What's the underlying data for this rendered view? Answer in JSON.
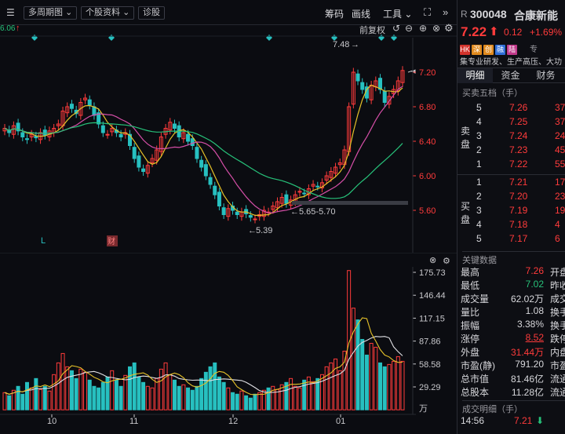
{
  "toolbar": {
    "period": "多周期图",
    "info": "个股资料",
    "diag": "诊股",
    "chip": "筹码",
    "draw": "画线",
    "tools": "工具",
    "fq": "前复权",
    "left_label": "6.06"
  },
  "chart_main": {
    "y_ticks": [
      "7.20",
      "6.80",
      "6.40",
      "6.00",
      "5.60"
    ],
    "annot_high": "7.48",
    "annot_low": "5.39",
    "annot_range": "5.65-5.70",
    "marker_L": "L",
    "marker_cai": "财",
    "x_labels": [
      "10",
      "11",
      "12",
      "01"
    ]
  },
  "chart_vol": {
    "y_ticks": [
      "175.73",
      "146.44",
      "117.15",
      "87.86",
      "58.58",
      "29.29"
    ],
    "unit": "万"
  },
  "stock": {
    "prefix": "R",
    "code": "300048",
    "name": "合康新能",
    "price": "7.22",
    "change": "0.12",
    "pct": "+1.69%",
    "tags": [
      {
        "t": "HK",
        "c": "#d2332c"
      },
      {
        "t": "深",
        "c": "#e08a1e"
      },
      {
        "t": "创",
        "c": "#e08a1e"
      },
      {
        "t": "融",
        "c": "#2f6ed8"
      },
      {
        "t": "陆",
        "c": "#c0398a"
      }
    ],
    "tag_suffix": "专",
    "desc": "集专业研发、生产高压、大功"
  },
  "tabs": [
    "明细",
    "资金",
    "财务"
  ],
  "orderbook": {
    "title": "买卖五档（手）",
    "sell_label": [
      "卖",
      "盘"
    ],
    "buy_label": [
      "买",
      "盘"
    ],
    "sell": [
      {
        "n": "5",
        "p": "7.26",
        "v": "37"
      },
      {
        "n": "4",
        "p": "7.25",
        "v": "37"
      },
      {
        "n": "3",
        "p": "7.24",
        "v": "24"
      },
      {
        "n": "2",
        "p": "7.23",
        "v": "45"
      },
      {
        "n": "1",
        "p": "7.22",
        "v": "55"
      }
    ],
    "buy": [
      {
        "n": "1",
        "p": "7.21",
        "v": "17"
      },
      {
        "n": "2",
        "p": "7.20",
        "v": "23"
      },
      {
        "n": "3",
        "p": "7.19",
        "v": "19"
      },
      {
        "n": "4",
        "p": "7.18",
        "v": "4"
      },
      {
        "n": "5",
        "p": "7.17",
        "v": "6"
      }
    ]
  },
  "keydata": {
    "title": "关键数据",
    "rows": [
      {
        "l": "最高",
        "v": "7.26",
        "c": "red",
        "r": "开盘"
      },
      {
        "l": "最低",
        "v": "7.02",
        "c": "grn",
        "r": "昨收"
      },
      {
        "l": "成交量",
        "v": "62.02万",
        "c": "wht",
        "r": "成交"
      },
      {
        "l": "量比",
        "v": "1.08",
        "c": "wht",
        "r": "换手"
      },
      {
        "l": "振幅",
        "v": "3.38%",
        "c": "wht",
        "r": "换手"
      },
      {
        "l": "涨停",
        "v": "8.52",
        "c": "red",
        "r": "跌停"
      },
      {
        "l": "外盘",
        "v": "31.44万",
        "c": "red",
        "r": "内盘"
      },
      {
        "l": "市盈(静)",
        "v": "791.20",
        "c": "wht",
        "r": "市盈"
      },
      {
        "l": "总市值",
        "v": "81.46亿",
        "c": "wht",
        "r": "流通"
      },
      {
        "l": "总股本",
        "v": "11.28亿",
        "c": "wht",
        "r": "流通"
      }
    ]
  },
  "trades": {
    "title": "成交明细（手）",
    "rows": [
      {
        "t": "14:56",
        "p": "7.21"
      }
    ]
  }
}
